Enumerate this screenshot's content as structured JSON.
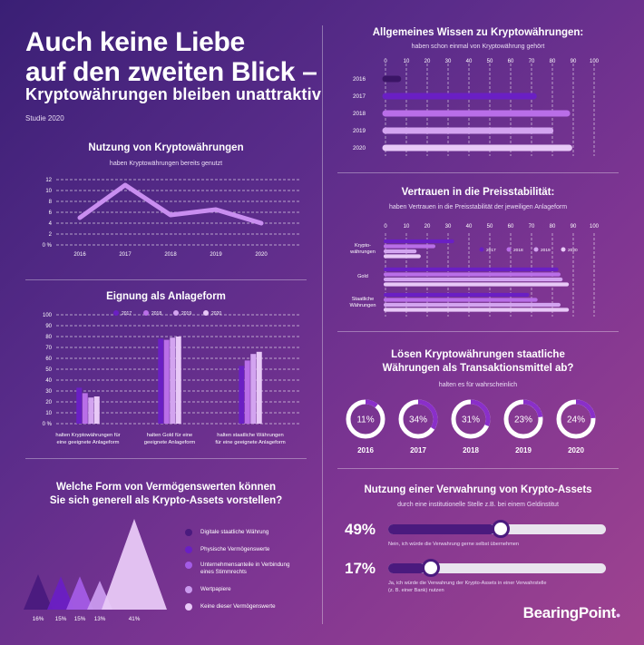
{
  "header": {
    "title_line1": "Auch keine Liebe",
    "title_line2": "auf den zweiten Blick –",
    "subtitle": "Kryptowährungen bleiben unattraktiv",
    "study": "Studie 2020"
  },
  "colors": {
    "y2016": "#3b1566",
    "y2017": "#6a1fc4",
    "y2018": "#b96ee8",
    "y2019": "#d3a4f0",
    "y2020": "#e8c9f7"
  },
  "chart_data": [
    {
      "id": "nutzung",
      "type": "line",
      "title": "Nutzung von Kryptowährungen",
      "subtitle": "haben Kryptowährungen bereits genutzt",
      "x": [
        "2016",
        "2017",
        "2018",
        "2019",
        "2020"
      ],
      "values": [
        5,
        11,
        5.5,
        6.5,
        4
      ],
      "yticks": [
        "0 %",
        "2",
        "4",
        "6",
        "8",
        "10",
        "12"
      ],
      "ylim": [
        0,
        12
      ]
    },
    {
      "id": "eignung",
      "type": "bar",
      "title": "Eignung als Anlageform",
      "categories": [
        [
          "halten Kryptowährungen für",
          "eine geeignete Anlageform"
        ],
        [
          "halten Gold für eine",
          "geeignete Anlageform"
        ],
        [
          "halten staatliche Währungen",
          "für eine geeignete Anlageform"
        ]
      ],
      "series": [
        {
          "name": "2017",
          "values": [
            33,
            78,
            53
          ]
        },
        {
          "name": "2018",
          "values": [
            28,
            77,
            58
          ]
        },
        {
          "name": "2019",
          "values": [
            24,
            79,
            64
          ]
        },
        {
          "name": "2020",
          "values": [
            25,
            80,
            66
          ]
        }
      ],
      "yticks": [
        "0 %",
        "10",
        "20",
        "30",
        "40",
        "50",
        "60",
        "70",
        "80",
        "90",
        "100"
      ],
      "ylim": [
        0,
        100
      ]
    },
    {
      "id": "wissen",
      "type": "bar",
      "orientation": "horizontal",
      "title": "Allgemeines Wissen zu Kryptowährungen:",
      "subtitle": "haben schon einmal von Kryptowährung gehört",
      "categories": [
        "2016",
        "2017",
        "2018",
        "2019",
        "2020"
      ],
      "values": [
        6,
        71,
        87,
        79,
        88
      ],
      "xticks": [
        "0",
        "10",
        "20",
        "30",
        "40",
        "50",
        "60",
        "70",
        "80",
        "90",
        "100"
      ],
      "xlim": [
        0,
        100
      ]
    },
    {
      "id": "vertrauen",
      "type": "bar",
      "orientation": "horizontal",
      "title": "Vertrauen in die Preisstabilität:",
      "subtitle": "haben Vertrauen in die Preisstabilität der jeweiligen Anlageform",
      "categories": [
        [
          "Krypto-",
          "währungen"
        ],
        [
          "Gold"
        ],
        [
          "Staatliche",
          "Währungen"
        ]
      ],
      "series": [
        {
          "name": "2017",
          "values": [
            32,
            82,
            68
          ]
        },
        {
          "name": "2018",
          "values": [
            23,
            83,
            72
          ]
        },
        {
          "name": "2019",
          "values": [
            14,
            84,
            83
          ]
        },
        {
          "name": "2020",
          "values": [
            16,
            87,
            87
          ]
        }
      ],
      "xticks": [
        "0",
        "10",
        "20",
        "30",
        "40",
        "50",
        "60",
        "70",
        "80",
        "90",
        "100"
      ],
      "xlim": [
        0,
        100
      ]
    },
    {
      "id": "transaktion",
      "type": "pie",
      "title_line1": "Lösen Kryptowährungen staatliche",
      "title_line2": "Währungen als Transaktionsmittel ab?",
      "subtitle": "halten es für wahrscheinlich",
      "items": [
        {
          "year": "2016",
          "label": "11%",
          "value": 11
        },
        {
          "year": "2017",
          "label": "34%",
          "value": 34
        },
        {
          "year": "2018",
          "label": "31%",
          "value": 31
        },
        {
          "year": "2019",
          "label": "23%",
          "value": 23
        },
        {
          "year": "2020",
          "label": "24%",
          "value": 24
        }
      ]
    },
    {
      "id": "vermoegen",
      "type": "bar",
      "title_line1": "Welche Form von Vermögenswerten können",
      "title_line2": "Sie sich generell als Krypto-Assets vorstellen?",
      "items": [
        {
          "label": "Digitale staatliche Währung",
          "value": 16,
          "pct": "16%",
          "color": "#4a1a7e"
        },
        {
          "label": "Physische Vermögenswerte",
          "value": 15,
          "pct": "15%",
          "color": "#6a1fc4"
        },
        {
          "label": "Unternehmensanteile in Verbindung eines Stimmrechts",
          "value": 15,
          "pct": "15%",
          "color": "#a35ce6"
        },
        {
          "label": "Wertpapiere",
          "value": 13,
          "pct": "13%",
          "color": "#c99aee"
        },
        {
          "label": "Keine dieser Vermögenswerte",
          "value": 41,
          "pct": "41%",
          "color": "#e8c9f7"
        }
      ]
    },
    {
      "id": "verwahrung",
      "type": "bar",
      "title": "Nutzung einer Verwahrung von Krypto-Assets",
      "subtitle": "durch eine institutionelle Stelle z.B. bei einem Geldinstitut",
      "items": [
        {
          "pct": "49%",
          "value": 49,
          "text1": "Nein, ich würde die Verwahrung gerne selbst übernehmen",
          "text2": ""
        },
        {
          "pct": "17%",
          "value": 17,
          "text1": "Ja, ich würde die Verwahrung der Krypto-Assets in einer Verwahrstelle",
          "text2": "(z. B. einer Bank) nutzen"
        }
      ]
    }
  ],
  "logo": "BearingPoint"
}
